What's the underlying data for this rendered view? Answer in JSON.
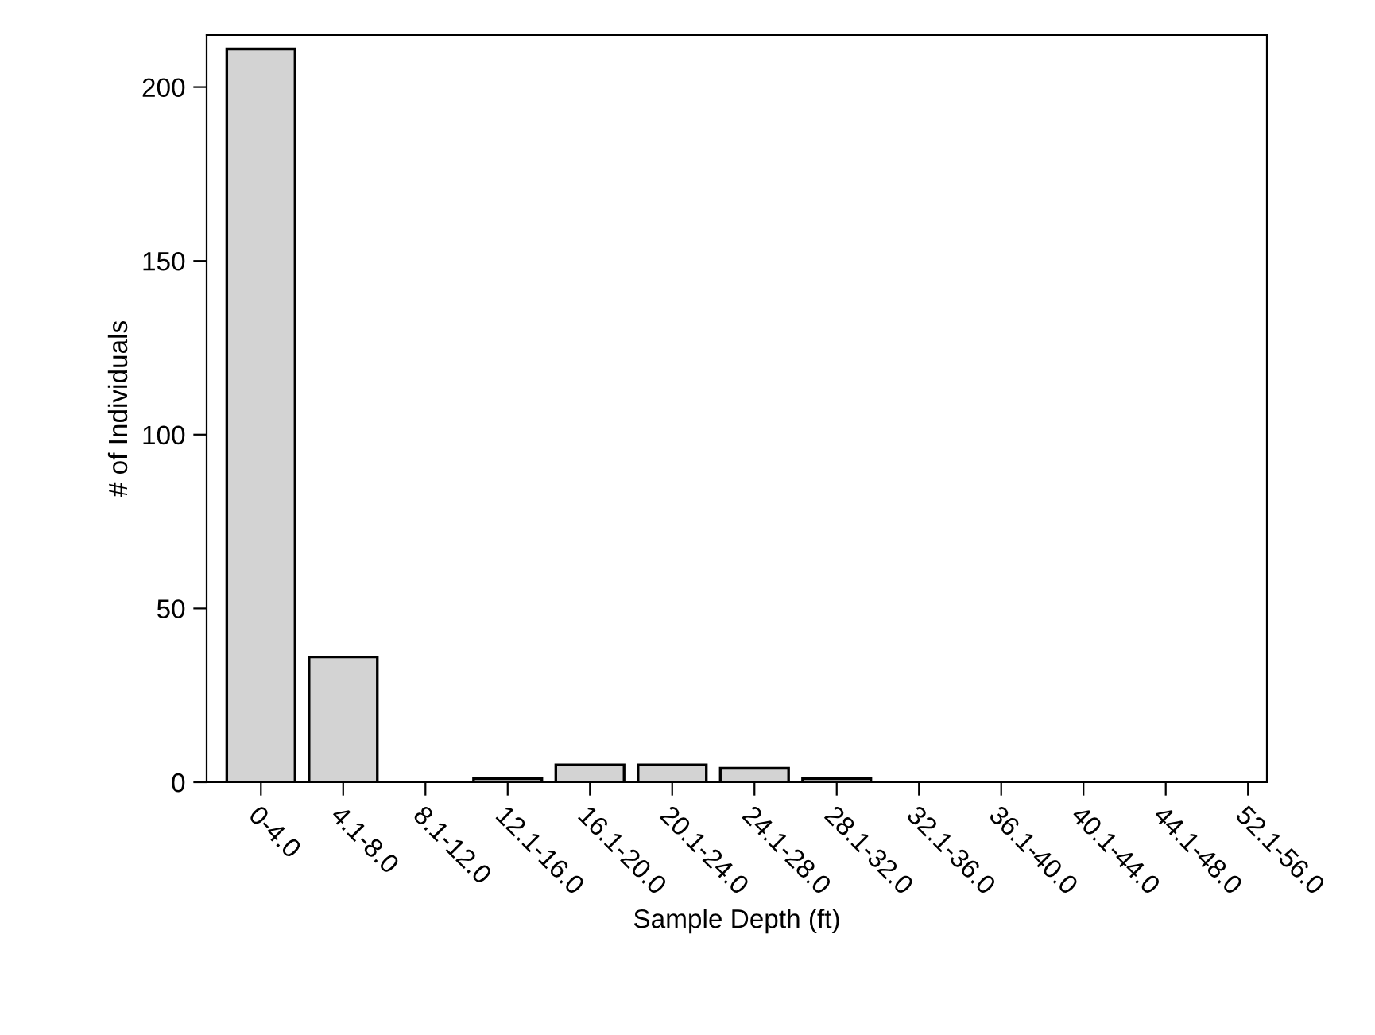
{
  "chart_data": {
    "type": "bar",
    "xlabel": "Sample Depth (ft)",
    "ylabel": "# of Individuals",
    "categories": [
      "0-4.0",
      "4.1-8.0",
      "8.1-12.0",
      "12.1-16.0",
      "16.1-20.0",
      "20.1-24.0",
      "24.1-28.0",
      "28.1-32.0",
      "32.1-36.0",
      "36.1-40.0",
      "40.1-44.0",
      "44.1-48.0",
      "52.1-56.0"
    ],
    "values": [
      211,
      36,
      0,
      1,
      5,
      5,
      4,
      1,
      0,
      0,
      0,
      0,
      0
    ],
    "color": "#d3d3d3",
    "ylim": [
      0,
      215
    ],
    "yticks": [
      0,
      50,
      100,
      150,
      200
    ],
    "grid": false,
    "legend": false
  }
}
